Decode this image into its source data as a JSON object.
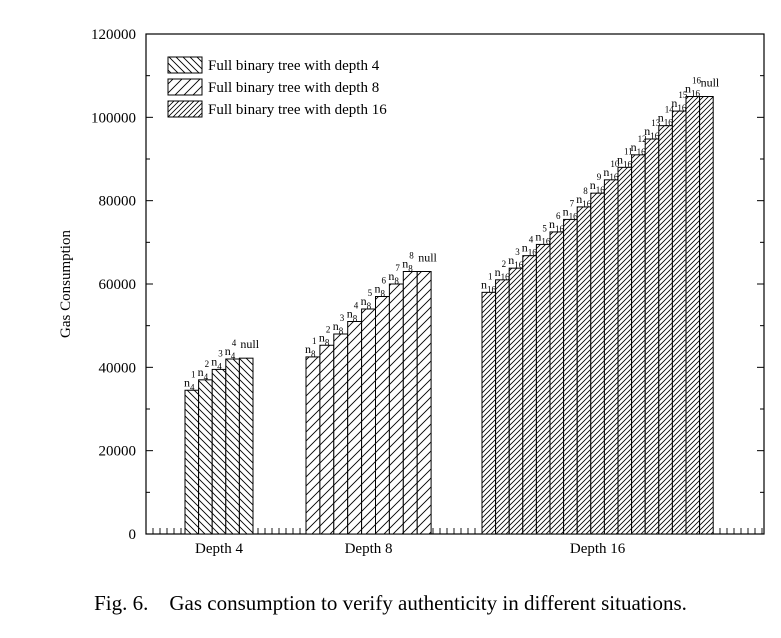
{
  "caption": "Fig. 6.    Gas consumption to verify authenticity in different situations.",
  "chart_data": {
    "type": "bar",
    "title": "",
    "xlabel": "",
    "ylabel": "Gas Consumption",
    "ylim": [
      0,
      120000
    ],
    "yticks": [
      0,
      20000,
      40000,
      60000,
      80000,
      100000,
      120000
    ],
    "grid": false,
    "legend_position": "top-left",
    "legend": [
      "Full binary tree with depth 4",
      "Full binary tree with depth 8",
      "Full binary tree with depth 16"
    ],
    "groups": [
      {
        "label": "Depth 4",
        "series": "Full binary tree with depth 4",
        "bars": [
          {
            "base": "n",
            "sub": "4",
            "sup": "1",
            "value": 34500
          },
          {
            "base": "n",
            "sub": "4",
            "sup": "2",
            "value": 37000
          },
          {
            "base": "n",
            "sub": "4",
            "sup": "3",
            "value": 39500
          },
          {
            "base": "n",
            "sub": "4",
            "sup": "4",
            "value": 42000
          },
          {
            "base": "null",
            "sub": "",
            "sup": "",
            "value": 42200
          }
        ]
      },
      {
        "label": "Depth 8",
        "series": "Full binary tree with depth 8",
        "bars": [
          {
            "base": "n",
            "sub": "8",
            "sup": "1",
            "value": 42500
          },
          {
            "base": "n",
            "sub": "8",
            "sup": "2",
            "value": 45300
          },
          {
            "base": "n",
            "sub": "8",
            "sup": "3",
            "value": 48000
          },
          {
            "base": "n",
            "sub": "8",
            "sup": "4",
            "value": 51000
          },
          {
            "base": "n",
            "sub": "8",
            "sup": "5",
            "value": 54000
          },
          {
            "base": "n",
            "sub": "8",
            "sup": "6",
            "value": 57000
          },
          {
            "base": "n",
            "sub": "8",
            "sup": "7",
            "value": 60000
          },
          {
            "base": "n",
            "sub": "8",
            "sup": "8",
            "value": 63000
          },
          {
            "base": "null",
            "sub": "",
            "sup": "",
            "value": 63000
          }
        ]
      },
      {
        "label": "Depth 16",
        "series": "Full binary tree with depth 16",
        "bars": [
          {
            "base": "n",
            "sub": "16",
            "sup": "1",
            "value": 58000
          },
          {
            "base": "n",
            "sub": "16",
            "sup": "2",
            "value": 61000
          },
          {
            "base": "n",
            "sub": "16",
            "sup": "3",
            "value": 63800
          },
          {
            "base": "n",
            "sub": "16",
            "sup": "4",
            "value": 66800
          },
          {
            "base": "n",
            "sub": "16",
            "sup": "5",
            "value": 69500
          },
          {
            "base": "n",
            "sub": "16",
            "sup": "6",
            "value": 72500
          },
          {
            "base": "n",
            "sub": "16",
            "sup": "7",
            "value": 75500
          },
          {
            "base": "n",
            "sub": "16",
            "sup": "8",
            "value": 78500
          },
          {
            "base": "n",
            "sub": "16",
            "sup": "9",
            "value": 81800
          },
          {
            "base": "n",
            "sub": "16",
            "sup": "10",
            "value": 85000
          },
          {
            "base": "n",
            "sub": "16",
            "sup": "11",
            "value": 88000
          },
          {
            "base": "n",
            "sub": "16",
            "sup": "12",
            "value": 91000
          },
          {
            "base": "n",
            "sub": "16",
            "sup": "13",
            "value": 94800
          },
          {
            "base": "n",
            "sub": "16",
            "sup": "14",
            "value": 98000
          },
          {
            "base": "n",
            "sub": "16",
            "sup": "15",
            "value": 101500
          },
          {
            "base": "n",
            "sub": "16",
            "sup": "16",
            "value": 105000
          },
          {
            "base": "null",
            "sub": "",
            "sup": "",
            "value": 105000
          }
        ]
      }
    ]
  }
}
